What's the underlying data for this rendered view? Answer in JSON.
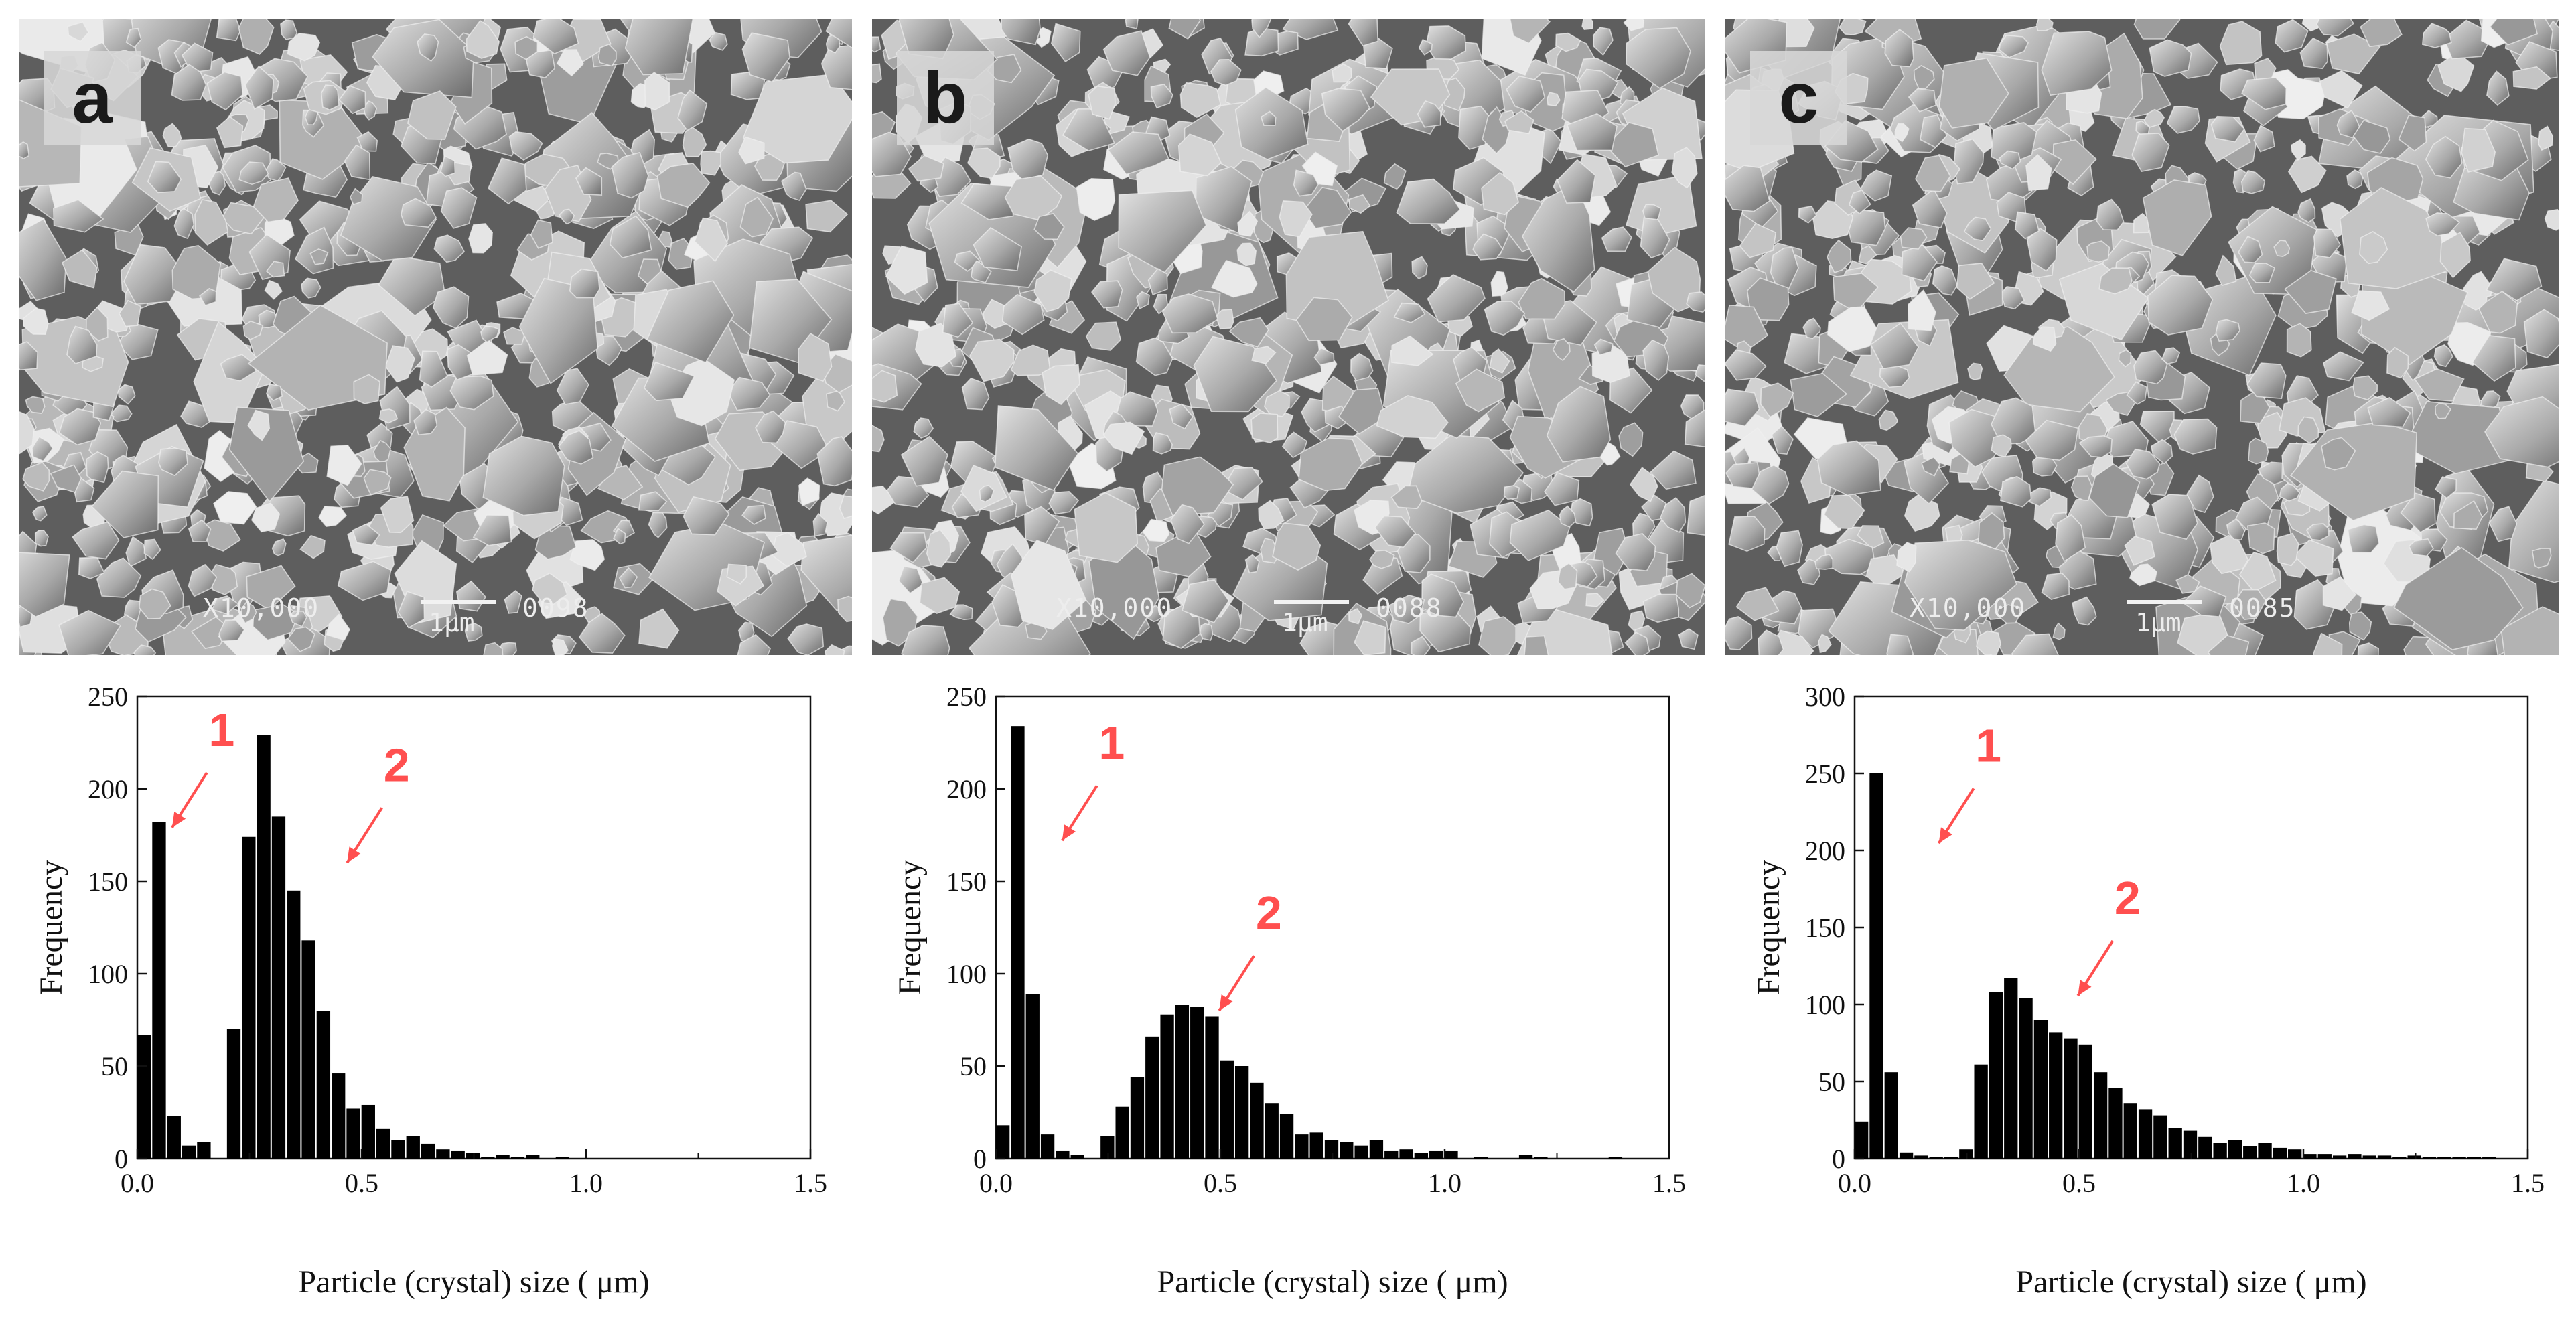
{
  "panels": [
    {
      "label": "a",
      "magnification": "X10,000",
      "scale_label": "1μm",
      "image_number": "0098"
    },
    {
      "label": "b",
      "magnification": "X10,000",
      "scale_label": "1μm",
      "image_number": "0088"
    },
    {
      "label": "c",
      "magnification": "X10,000",
      "scale_label": "1μm",
      "image_number": "0085"
    }
  ],
  "colors": {
    "bars": "#000000",
    "annotation": "#ff4f4f",
    "sem_background": "#6d6d6d"
  },
  "chart_data": [
    {
      "type": "bar",
      "xlabel": "Particle (crystal) size ( μm)",
      "ylabel": "Frequency",
      "xlim": [
        0,
        1.5
      ],
      "ylim": [
        0,
        250
      ],
      "xticks": [
        0.0,
        0.5,
        1.0,
        1.5
      ],
      "xtick_labels": [
        "0.0",
        "0.5",
        "1.0",
        "1.5"
      ],
      "yticks": [
        0,
        50,
        100,
        150,
        200,
        250
      ],
      "bin_width": 0.0333,
      "values": [
        67,
        182,
        23,
        7,
        9,
        0,
        70,
        174,
        229,
        185,
        145,
        118,
        80,
        46,
        27,
        29,
        16,
        10,
        12,
        8,
        5,
        4,
        3,
        1,
        2,
        1,
        2,
        0,
        1,
        0,
        0,
        0,
        0,
        0,
        0
      ],
      "annotations": [
        {
          "text": "1",
          "x": 0.17,
          "y": 216
        },
        {
          "text": "2",
          "x": 0.56,
          "y": 197
        }
      ]
    },
    {
      "type": "bar",
      "xlabel": "Particle (crystal) size ( μm)",
      "ylabel": "Frequency",
      "xlim": [
        0,
        1.5
      ],
      "ylim": [
        0,
        250
      ],
      "xticks": [
        0.0,
        0.5,
        1.0,
        1.5
      ],
      "xtick_labels": [
        "0.0",
        "0.5",
        "1.0",
        "1.5"
      ],
      "yticks": [
        0,
        50,
        100,
        150,
        200,
        250
      ],
      "bin_width": 0.0333,
      "values": [
        18,
        234,
        89,
        13,
        4,
        2,
        0,
        12,
        28,
        44,
        66,
        78,
        83,
        82,
        77,
        53,
        50,
        41,
        30,
        24,
        13,
        14,
        10,
        9,
        7,
        10,
        4,
        5,
        3,
        4,
        4,
        0,
        1,
        0,
        0,
        2,
        1,
        0,
        0,
        0,
        0,
        1,
        0
      ],
      "annotations": [
        {
          "text": "1",
          "x": 0.24,
          "y": 209
        },
        {
          "text": "2",
          "x": 0.59,
          "y": 117
        }
      ]
    },
    {
      "type": "bar",
      "xlabel": "Particle (crystal) size ( μm)",
      "ylabel": "Frequency",
      "xlim": [
        0,
        1.5
      ],
      "ylim": [
        0,
        300
      ],
      "xticks": [
        0.0,
        0.5,
        1.0,
        1.5
      ],
      "xtick_labels": [
        "0.0",
        "0.5",
        "1.0",
        "1.5"
      ],
      "yticks": [
        0,
        50,
        100,
        150,
        200,
        250,
        300
      ],
      "bin_width": 0.0333,
      "values": [
        24,
        250,
        56,
        4,
        2,
        1,
        1,
        6,
        61,
        108,
        117,
        104,
        90,
        82,
        78,
        74,
        56,
        46,
        36,
        32,
        28,
        20,
        18,
        14,
        10,
        12,
        8,
        10,
        7,
        6,
        3,
        3,
        2,
        3,
        2,
        2,
        1,
        2,
        1,
        1,
        1,
        1,
        1
      ],
      "annotations": [
        {
          "text": "1",
          "x": 0.28,
          "y": 249
        },
        {
          "text": "2",
          "x": 0.59,
          "y": 150
        }
      ]
    }
  ]
}
